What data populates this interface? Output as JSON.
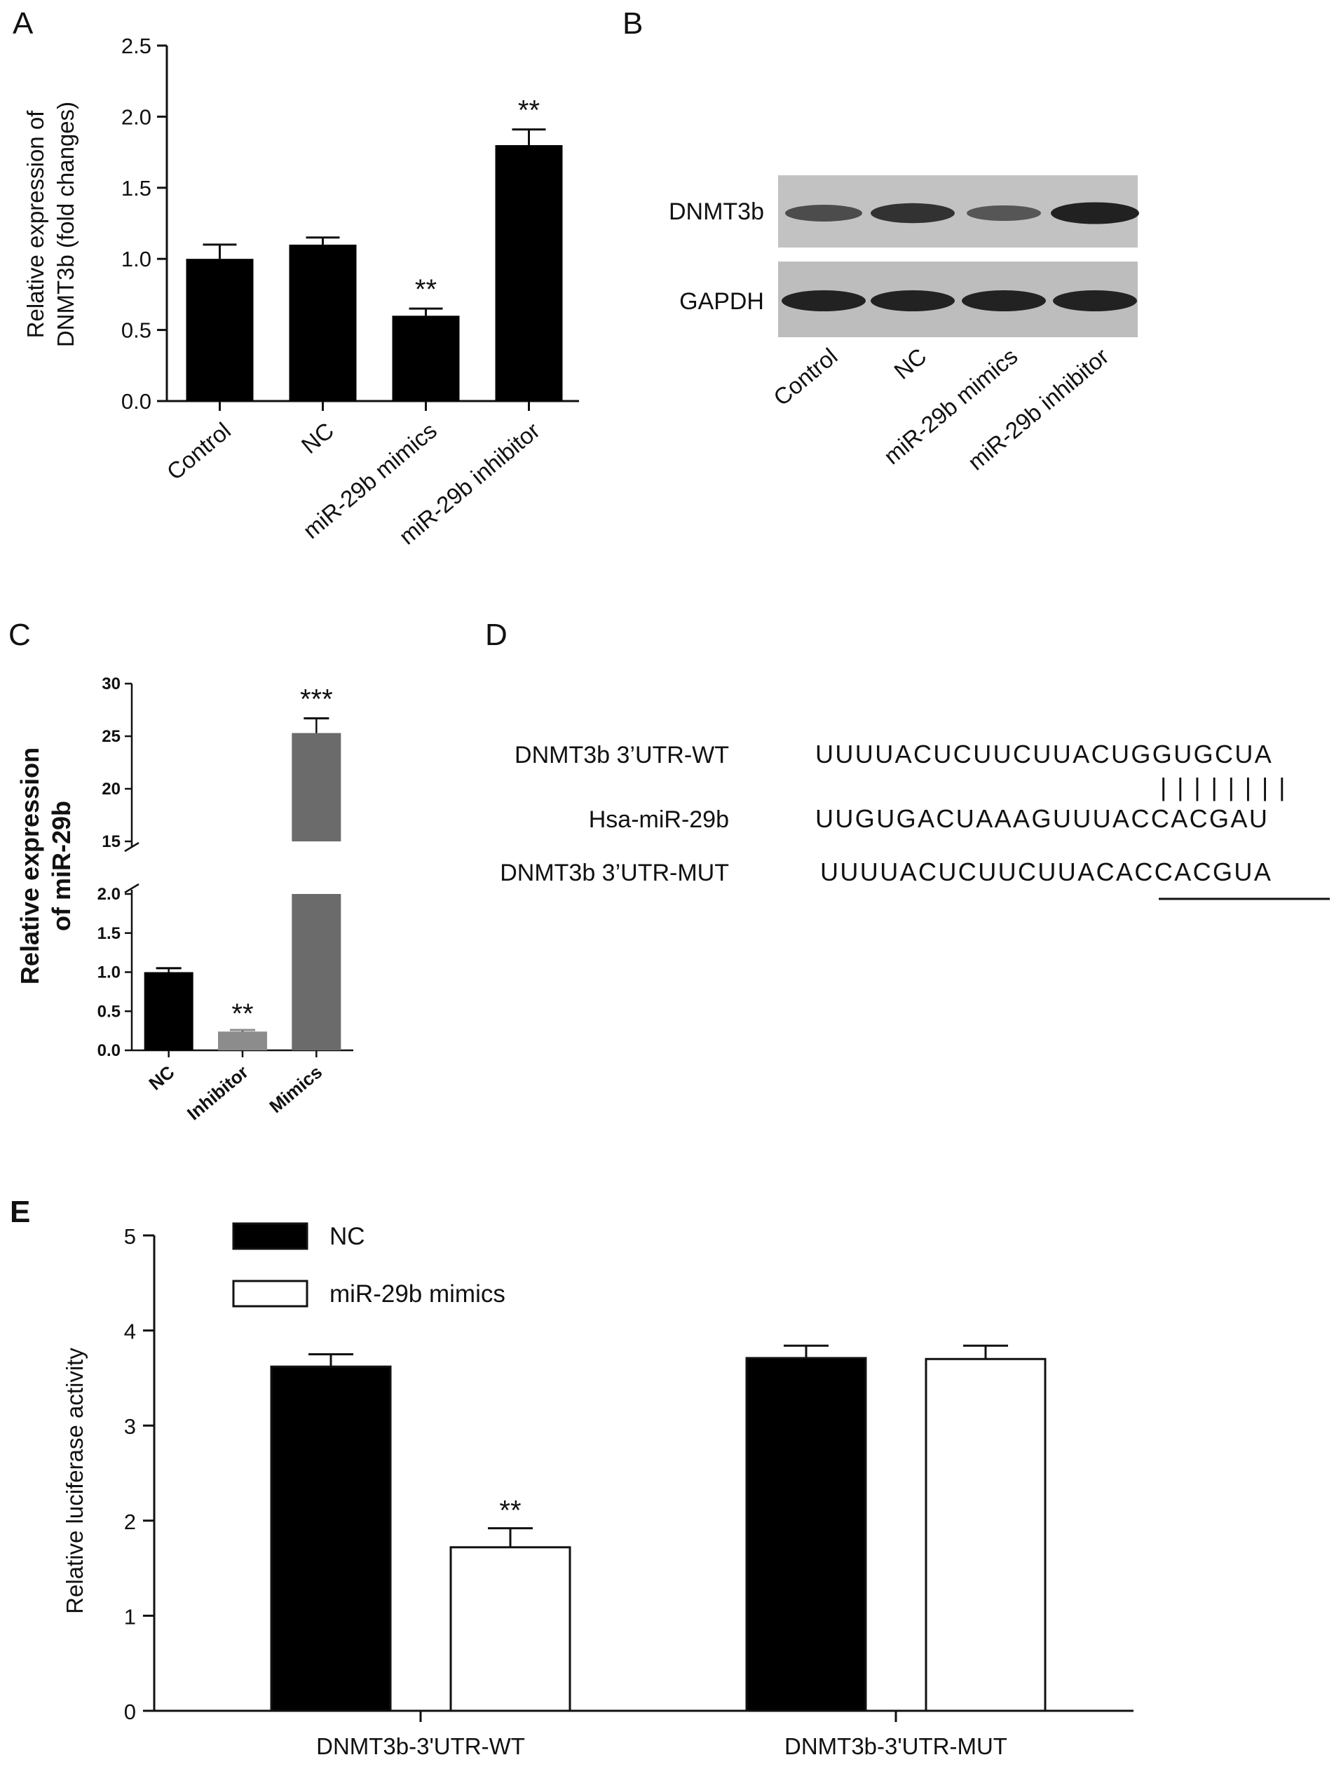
{
  "chart_data": [
    {
      "panel": "A",
      "type": "bar",
      "ylabel": [
        "Relative expression of",
        "DNMT3b (fold changes)"
      ],
      "categories": [
        "Control",
        "NC",
        "miR-29b mimics",
        "miR-29b inhibitor"
      ],
      "values": [
        1.0,
        1.1,
        0.6,
        1.8
      ],
      "errors": [
        0.1,
        0.05,
        0.05,
        0.11
      ],
      "significance": [
        "",
        "",
        "**",
        "**"
      ],
      "ylim": [
        0,
        2.5
      ],
      "yticks": [
        "0.0",
        "0.5",
        "1.0",
        "1.5",
        "2.0",
        "2.5"
      ],
      "bar_color": "#000000"
    },
    {
      "panel": "C",
      "type": "bar",
      "ylabel": [
        "Relative expression",
        "of miR-29b"
      ],
      "categories": [
        "NC",
        "Inhibitor",
        "Mimics"
      ],
      "values": [
        1.0,
        0.24,
        25.3
      ],
      "errors": [
        0.05,
        0.02,
        1.4
      ],
      "significance": [
        "",
        "**",
        "***"
      ],
      "bar_colors": [
        "#000000",
        "#8c8c8c",
        "#6b6b6b"
      ],
      "axis_break": {
        "lower_range": [
          0,
          2.0
        ],
        "upper_range": [
          15,
          30
        ]
      },
      "yticks_lower": [
        "0.0",
        "0.5",
        "1.0",
        "1.5",
        "2.0"
      ],
      "yticks_upper": [
        "15",
        "20",
        "25",
        "30"
      ]
    },
    {
      "panel": "E",
      "type": "bar",
      "ylabel": "Relative luciferase activity",
      "categories": [
        "DNMT3b-3'UTR-WT",
        "DNMT3b-3'UTR-MUT"
      ],
      "series": [
        {
          "name": "NC",
          "values": [
            3.62,
            3.71
          ],
          "errors": [
            0.13,
            0.13
          ],
          "color": "#000000"
        },
        {
          "name": "miR-29b mimics",
          "values": [
            1.72,
            3.7
          ],
          "errors": [
            0.2,
            0.14
          ],
          "color": "#ffffff"
        }
      ],
      "significance": [
        [
          "",
          "**"
        ],
        [
          "",
          ""
        ]
      ],
      "ylim": [
        0,
        5
      ],
      "yticks": [
        "0",
        "1",
        "2",
        "3",
        "4",
        "5"
      ],
      "legend_position": "top-left"
    }
  ],
  "panel_labels": {
    "a": "A",
    "b": "B",
    "c": "C",
    "d": "D",
    "e": "E"
  },
  "blot": {
    "proteins": [
      "DNMT3b",
      "GAPDH"
    ],
    "lanes": [
      "Control",
      "NC",
      "miR-29b mimics",
      "miR-29b inhibitor"
    ],
    "dnmt3b_band_intensity": [
      0.55,
      0.8,
      0.45,
      0.95
    ],
    "gapdh_band_intensity": [
      0.9,
      0.9,
      0.9,
      0.9
    ]
  },
  "sequence": {
    "rows": [
      {
        "label": "DNMT3b 3’UTR-WT",
        "seq": "UUUUACUCUUCUUACUGGUGCUA"
      },
      {
        "label": "Hsa-miR-29b",
        "seq": "UUGUGACUAAAGUUUACCACGAU"
      },
      {
        "label": "DNMT3b 3’UTR-MUT",
        "seq": "UUUUACUCUUCUUACACCACGUA"
      }
    ],
    "pairing": "| | | | | | | |"
  },
  "colors": {
    "black_bar": "#000000",
    "axis": "#111111",
    "blot_bg": "#bdbdbd"
  }
}
